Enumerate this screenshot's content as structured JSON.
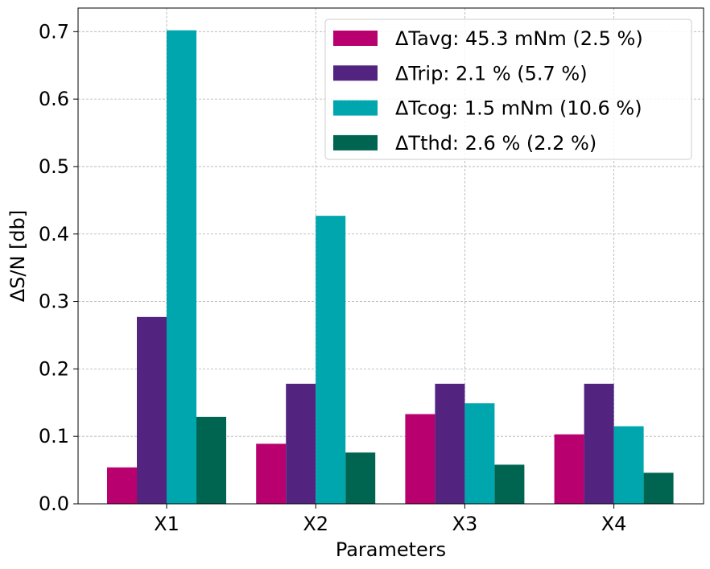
{
  "chart_data": {
    "type": "bar",
    "title": "",
    "xlabel": "Parameters",
    "ylabel": "ΔS/N [db]",
    "categories": [
      "X1",
      "X2",
      "X3",
      "X4"
    ],
    "ylim": [
      0,
      0.735
    ],
    "yticks": [
      0.0,
      0.1,
      0.2,
      0.3,
      0.4,
      0.5,
      0.6,
      0.7
    ],
    "ytick_labels": [
      "0.0",
      "0.1",
      "0.2",
      "0.3",
      "0.4",
      "0.5",
      "0.6",
      "0.7"
    ],
    "grid": true,
    "legend_position": "top-right",
    "series": [
      {
        "name": "ΔTavg: 45.3 mNm (2.5 %)",
        "color": "#b8006e",
        "values": [
          0.054,
          0.089,
          0.133,
          0.103
        ]
      },
      {
        "name": "ΔTrip: 2.1 % (5.7 %)",
        "color": "#52247f",
        "values": [
          0.277,
          0.178,
          0.178,
          0.178
        ]
      },
      {
        "name": "ΔTcog: 1.5 mNm (10.6 %)",
        "color": "#00a6ad",
        "values": [
          0.702,
          0.427,
          0.149,
          0.115
        ]
      },
      {
        "name": "ΔTthd: 2.6 % (2.2 %)",
        "color": "#006550",
        "values": [
          0.129,
          0.076,
          0.058,
          0.046
        ]
      }
    ]
  }
}
